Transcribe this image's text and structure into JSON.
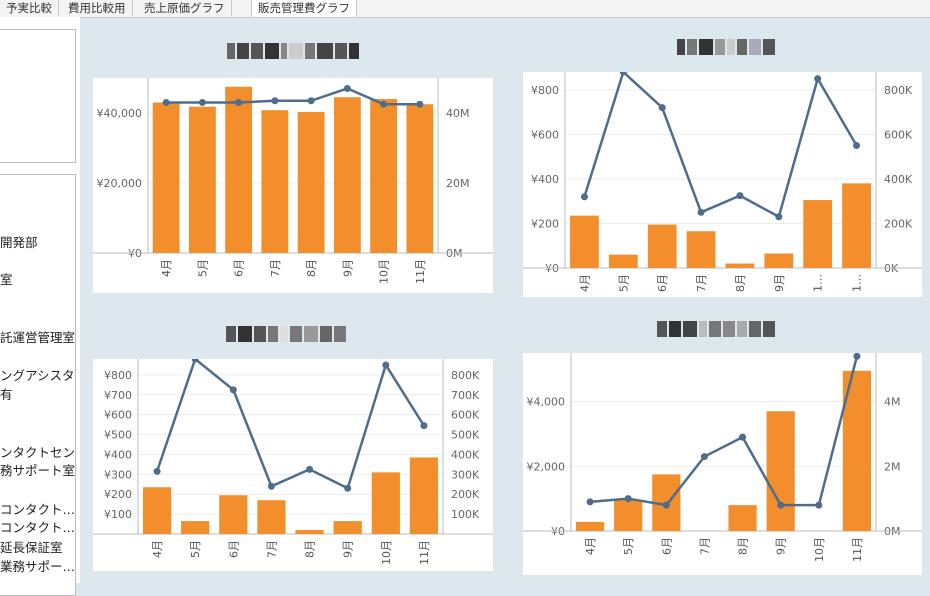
{
  "tabs": [
    {
      "label": "予実比較",
      "active": false
    },
    {
      "label": "費用比較用",
      "active": false
    },
    {
      "label": "売上原価グラフ",
      "active": false
    },
    {
      "label": "販売管理費グラフ",
      "active": true
    }
  ],
  "sidebar": {
    "items": [
      "開発部",
      "室",
      "託運営管理室",
      "ングアシスタ…",
      "有",
      "ンタクトセン…",
      "務サポート室",
      "コンタクト…",
      "コンタクト…",
      "延長保証室",
      "業務サポー…"
    ]
  },
  "colors": {
    "bar": "#f28e2b",
    "line": "#4e6d8d",
    "axis": "#888888",
    "background": "#dde8ee"
  },
  "chart_data": [
    {
      "type": "bar",
      "categories": [
        "4月",
        "5月",
        "6月",
        "7月",
        "8月",
        "9月",
        "10月",
        "11月"
      ],
      "values": [
        43000,
        41800,
        47500,
        40800,
        40300,
        44500,
        44000,
        42500
      ],
      "yticks": [
        "¥40,000",
        "¥20,000",
        "¥0"
      ],
      "ylim": [
        0,
        50000
      ],
      "line": {
        "values": [
          43,
          43,
          43,
          43.5,
          43.5,
          47,
          42.5,
          42.5
        ],
        "ylim": [
          0,
          50
        ],
        "yticks": [
          "40M",
          "20M",
          "0M"
        ]
      }
    },
    {
      "type": "bar",
      "categories": [
        "4月",
        "5月",
        "6月",
        "7月",
        "8月",
        "9月",
        "1…",
        "1…"
      ],
      "values": [
        235,
        60,
        195,
        165,
        20,
        65,
        305,
        380
      ],
      "yticks": [
        "¥800",
        "¥600",
        "¥400",
        "¥200",
        "¥0"
      ],
      "ylim": [
        0,
        880
      ],
      "line": {
        "values": [
          320,
          880,
          720,
          250,
          325,
          230,
          850,
          550
        ],
        "ylim": [
          0,
          880
        ],
        "yticks": [
          "800K",
          "600K",
          "400K",
          "200K",
          "0K"
        ]
      }
    },
    {
      "type": "bar",
      "categories": [
        "4月",
        "5月",
        "6月",
        "7月",
        "8月",
        "9月",
        "10月",
        "11月"
      ],
      "values": [
        235,
        65,
        195,
        170,
        20,
        65,
        310,
        385
      ],
      "yticks": [
        "¥800",
        "¥700",
        "¥600",
        "¥500",
        "¥400",
        "¥300",
        "¥200",
        "¥100"
      ],
      "ylim": [
        0,
        880
      ],
      "line": {
        "values": [
          315,
          880,
          725,
          240,
          325,
          230,
          850,
          545
        ],
        "ylim": [
          0,
          880
        ],
        "yticks": [
          "800K",
          "700K",
          "600K",
          "500K",
          "400K",
          "300K",
          "200K",
          "100K"
        ]
      }
    },
    {
      "type": "bar",
      "categories": [
        "4月",
        "5月",
        "6月",
        "7月",
        "8月",
        "9月",
        "10月",
        "11月"
      ],
      "values": [
        280,
        950,
        1750,
        0,
        800,
        3700,
        0,
        4950
      ],
      "yticks": [
        "¥4,000",
        "¥2,000",
        "¥0"
      ],
      "ylim": [
        0,
        5500
      ],
      "line": {
        "values": [
          0.9,
          1.0,
          0.8,
          2.3,
          2.9,
          0.8,
          0.8,
          5.4
        ],
        "ylim": [
          0,
          5.5
        ],
        "yticks": [
          "4M",
          "2M",
          "0M"
        ]
      }
    }
  ]
}
